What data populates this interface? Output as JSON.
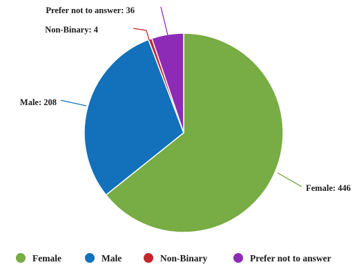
{
  "chart_data": {
    "type": "pie",
    "title": "",
    "slices": [
      {
        "label": "Female",
        "value": 446,
        "color": "#78AC44",
        "data_label": "Female: 446"
      },
      {
        "label": "Male",
        "value": 208,
        "color": "#1271BA",
        "data_label": "Male: 208"
      },
      {
        "label": "Non-Binary",
        "value": 4,
        "color": "#C4262E",
        "data_label": "Non-Binary: 4"
      },
      {
        "label": "Prefer not to answer",
        "value": 36,
        "color": "#8E2BB6",
        "data_label": "Prefer not to answer: 36"
      }
    ],
    "start_angle_deg": 0,
    "direction": "clockwise",
    "legend": {
      "position": "bottom",
      "marker": "circle"
    }
  }
}
